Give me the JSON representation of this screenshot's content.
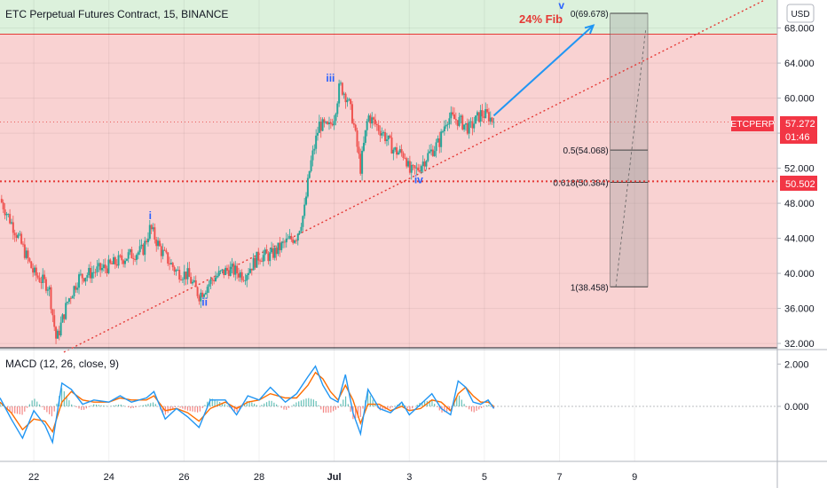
{
  "header": {
    "symbol_title": "ETC Perpetual Futures Contract, 15, BINANCE",
    "currency": "USD"
  },
  "colors": {
    "up": "#26a69a",
    "down": "#ef5350",
    "zone_green": "#dcf1dc",
    "zone_red": "#f9d2d2",
    "trendline": "#e53935",
    "support": "#e53935",
    "arrow": "#2196f3",
    "wave_label": "#2962ff",
    "macd": "#2196f3",
    "signal": "#ff6d00",
    "fib_text": "#e53935",
    "badge_bg": "#f23645",
    "level_bg": "#f23645"
  },
  "annotations": {
    "fib_title": "24% Fib",
    "waves": [
      "i",
      "ii",
      "iii",
      "iv",
      "v"
    ]
  },
  "price_badge": {
    "symbol": "ETCPERP",
    "price": "57.272",
    "countdown": "01:46"
  },
  "level_badge": "50.502",
  "fib_levels": [
    {
      "label": "0(69.678)",
      "value": 69.678
    },
    {
      "label": "0.5(54.068)",
      "value": 54.068
    },
    {
      "label": "0.618(50.384)",
      "value": 50.384
    },
    {
      "label": "1(38.458)",
      "value": 38.458
    }
  ],
  "chart_data": [
    {
      "type": "candlestick",
      "title": "ETC Perpetual Futures Contract, 15, BINANCE",
      "price_scale": {
        "ticks": [
          "68.000",
          "64.000",
          "60.000",
          "56.000",
          "52.000",
          "48.000",
          "44.000",
          "40.000",
          "36.000",
          "32.000"
        ],
        "ylim": [
          31.5,
          71.2
        ]
      },
      "x_ticks": [
        "22",
        "24",
        "26",
        "28",
        "Jul",
        "3",
        "5",
        "7",
        "9"
      ],
      "x_tick_days": [
        22,
        24,
        26,
        28,
        30,
        32,
        34,
        36,
        38
      ],
      "xlim": [
        21.1,
        41.8
      ],
      "price_path": [
        [
          21.1,
          48.5
        ],
        [
          21.6,
          44.0
        ],
        [
          22.0,
          40.0
        ],
        [
          22.4,
          38.5
        ],
        [
          22.6,
          32.3
        ],
        [
          22.9,
          36.8
        ],
        [
          23.2,
          39.5
        ],
        [
          23.6,
          40.2
        ],
        [
          24.0,
          40.8
        ],
        [
          24.5,
          42.0
        ],
        [
          24.9,
          42.6
        ],
        [
          25.1,
          45.2
        ],
        [
          25.4,
          42.5
        ],
        [
          25.8,
          40.2
        ],
        [
          26.1,
          39.8
        ],
        [
          26.4,
          37.5
        ],
        [
          26.8,
          39.5
        ],
        [
          27.2,
          40.5
        ],
        [
          27.6,
          39.8
        ],
        [
          28.0,
          42.0
        ],
        [
          28.3,
          42.0
        ],
        [
          28.7,
          43.5
        ],
        [
          29.0,
          44.3
        ],
        [
          29.2,
          47.0
        ],
        [
          29.35,
          52.0
        ],
        [
          29.6,
          57.0
        ],
        [
          29.85,
          56.5
        ],
        [
          30.0,
          58.0
        ],
        [
          30.15,
          61.5
        ],
        [
          30.35,
          60.0
        ],
        [
          30.5,
          57.5
        ],
        [
          30.7,
          52.0
        ],
        [
          30.9,
          58.0
        ],
        [
          31.1,
          57.0
        ],
        [
          31.3,
          56.0
        ],
        [
          31.6,
          54.0
        ],
        [
          31.9,
          53.5
        ],
        [
          32.0,
          51.5
        ],
        [
          32.2,
          51.8
        ],
        [
          32.5,
          53.5
        ],
        [
          32.8,
          55.0
        ],
        [
          33.0,
          57.8
        ],
        [
          33.3,
          57.5
        ],
        [
          33.6,
          56.5
        ],
        [
          33.9,
          58.2
        ],
        [
          34.1,
          58.0
        ],
        [
          34.25,
          57.272
        ]
      ],
      "wave_points": [
        {
          "label": "i",
          "x": 25.1,
          "y": 46.2
        },
        {
          "label": "ii",
          "x": 26.55,
          "y": 36.3
        },
        {
          "label": "iii",
          "x": 29.9,
          "y": 61.9
        },
        {
          "label": "iv",
          "x": 32.25,
          "y": 50.3
        },
        {
          "label": "v",
          "x": 36.05,
          "y": 70.2
        }
      ],
      "trendline": {
        "from": [
          22.8,
          31.0
        ],
        "to": [
          41.6,
          71.5
        ]
      },
      "arrow": {
        "from": [
          34.25,
          58.0
        ],
        "to": [
          35.4,
          65.8
        ],
        "from2": [
          35.4,
          65.8
        ],
        "to2": [
          36.9,
          68.3
        ]
      },
      "horizontal_lines": {
        "zone_top": 67.3,
        "support": 50.502,
        "last_price": 57.272
      },
      "zones": [
        {
          "name": "green",
          "from": 67.3,
          "to": 71.2
        },
        {
          "name": "red",
          "from": 31.5,
          "to": 67.3
        }
      ],
      "fib_box": {
        "x_from": 37.35,
        "x_to": 38.35,
        "top": 69.678,
        "bottom": 38.458,
        "retrace_to": 54.068
      },
      "grid": true
    },
    {
      "type": "line",
      "title": "MACD (12, 26, close, 9)",
      "price_scale": {
        "ticks": [
          "2.000",
          "0.000"
        ],
        "ylim": [
          -2.6,
          2.6
        ]
      },
      "series": [
        {
          "name": "MACD",
          "values": [
            [
              21.1,
              0.4
            ],
            [
              21.4,
              -0.6
            ],
            [
              21.7,
              -1.5
            ],
            [
              22.0,
              -0.2
            ],
            [
              22.3,
              -0.9
            ],
            [
              22.5,
              -1.7
            ],
            [
              22.75,
              1.1
            ],
            [
              23.0,
              0.8
            ],
            [
              23.3,
              0.1
            ],
            [
              23.6,
              0.3
            ],
            [
              24.0,
              0.2
            ],
            [
              24.3,
              0.5
            ],
            [
              24.6,
              0.2
            ],
            [
              25.0,
              0.4
            ],
            [
              25.2,
              0.7
            ],
            [
              25.5,
              -0.6
            ],
            [
              25.8,
              -0.1
            ],
            [
              26.1,
              -0.5
            ],
            [
              26.4,
              -1.0
            ],
            [
              26.7,
              0.3
            ],
            [
              27.1,
              0.3
            ],
            [
              27.4,
              -0.4
            ],
            [
              27.7,
              0.5
            ],
            [
              28.0,
              0.3
            ],
            [
              28.3,
              0.9
            ],
            [
              28.7,
              0.2
            ],
            [
              29.0,
              0.6
            ],
            [
              29.3,
              1.4
            ],
            [
              29.5,
              1.9
            ],
            [
              29.7,
              1.0
            ],
            [
              29.9,
              0.4
            ],
            [
              30.1,
              0.2
            ],
            [
              30.3,
              1.5
            ],
            [
              30.5,
              -0.3
            ],
            [
              30.7,
              -1.3
            ],
            [
              30.9,
              0.8
            ],
            [
              31.2,
              -0.1
            ],
            [
              31.5,
              -0.3
            ],
            [
              31.8,
              0.2
            ],
            [
              32.0,
              -0.4
            ],
            [
              32.3,
              0.1
            ],
            [
              32.6,
              0.6
            ],
            [
              32.85,
              -0.1
            ],
            [
              33.1,
              -0.4
            ],
            [
              33.3,
              1.2
            ],
            [
              33.5,
              0.9
            ],
            [
              33.7,
              0.2
            ],
            [
              33.9,
              0.1
            ],
            [
              34.1,
              0.3
            ],
            [
              34.25,
              -0.1
            ]
          ]
        },
        {
          "name": "Signal",
          "values": [
            [
              21.1,
              0.2
            ],
            [
              21.4,
              -0.3
            ],
            [
              21.7,
              -1.1
            ],
            [
              22.0,
              -0.6
            ],
            [
              22.3,
              -0.7
            ],
            [
              22.5,
              -1.2
            ],
            [
              22.75,
              0.2
            ],
            [
              23.0,
              0.7
            ],
            [
              23.3,
              0.3
            ],
            [
              23.6,
              0.2
            ],
            [
              24.0,
              0.2
            ],
            [
              24.3,
              0.4
            ],
            [
              24.6,
              0.3
            ],
            [
              25.0,
              0.3
            ],
            [
              25.2,
              0.5
            ],
            [
              25.5,
              -0.2
            ],
            [
              25.8,
              -0.1
            ],
            [
              26.1,
              -0.3
            ],
            [
              26.4,
              -0.7
            ],
            [
              26.7,
              -0.1
            ],
            [
              27.1,
              0.2
            ],
            [
              27.4,
              -0.1
            ],
            [
              27.7,
              0.2
            ],
            [
              28.0,
              0.3
            ],
            [
              28.3,
              0.6
            ],
            [
              28.7,
              0.4
            ],
            [
              29.0,
              0.4
            ],
            [
              29.3,
              1.0
            ],
            [
              29.5,
              1.6
            ],
            [
              29.7,
              1.3
            ],
            [
              29.9,
              0.7
            ],
            [
              30.1,
              0.3
            ],
            [
              30.3,
              1.0
            ],
            [
              30.5,
              0.3
            ],
            [
              30.7,
              -0.8
            ],
            [
              30.9,
              0.1
            ],
            [
              31.2,
              0.1
            ],
            [
              31.5,
              -0.2
            ],
            [
              31.8,
              0.0
            ],
            [
              32.0,
              -0.2
            ],
            [
              32.3,
              -0.1
            ],
            [
              32.6,
              0.3
            ],
            [
              32.85,
              0.2
            ],
            [
              33.1,
              -0.2
            ],
            [
              33.3,
              0.6
            ],
            [
              33.5,
              0.9
            ],
            [
              33.7,
              0.5
            ],
            [
              33.9,
              0.2
            ],
            [
              34.1,
              0.2
            ],
            [
              34.25,
              0.0
            ]
          ]
        }
      ]
    }
  ]
}
